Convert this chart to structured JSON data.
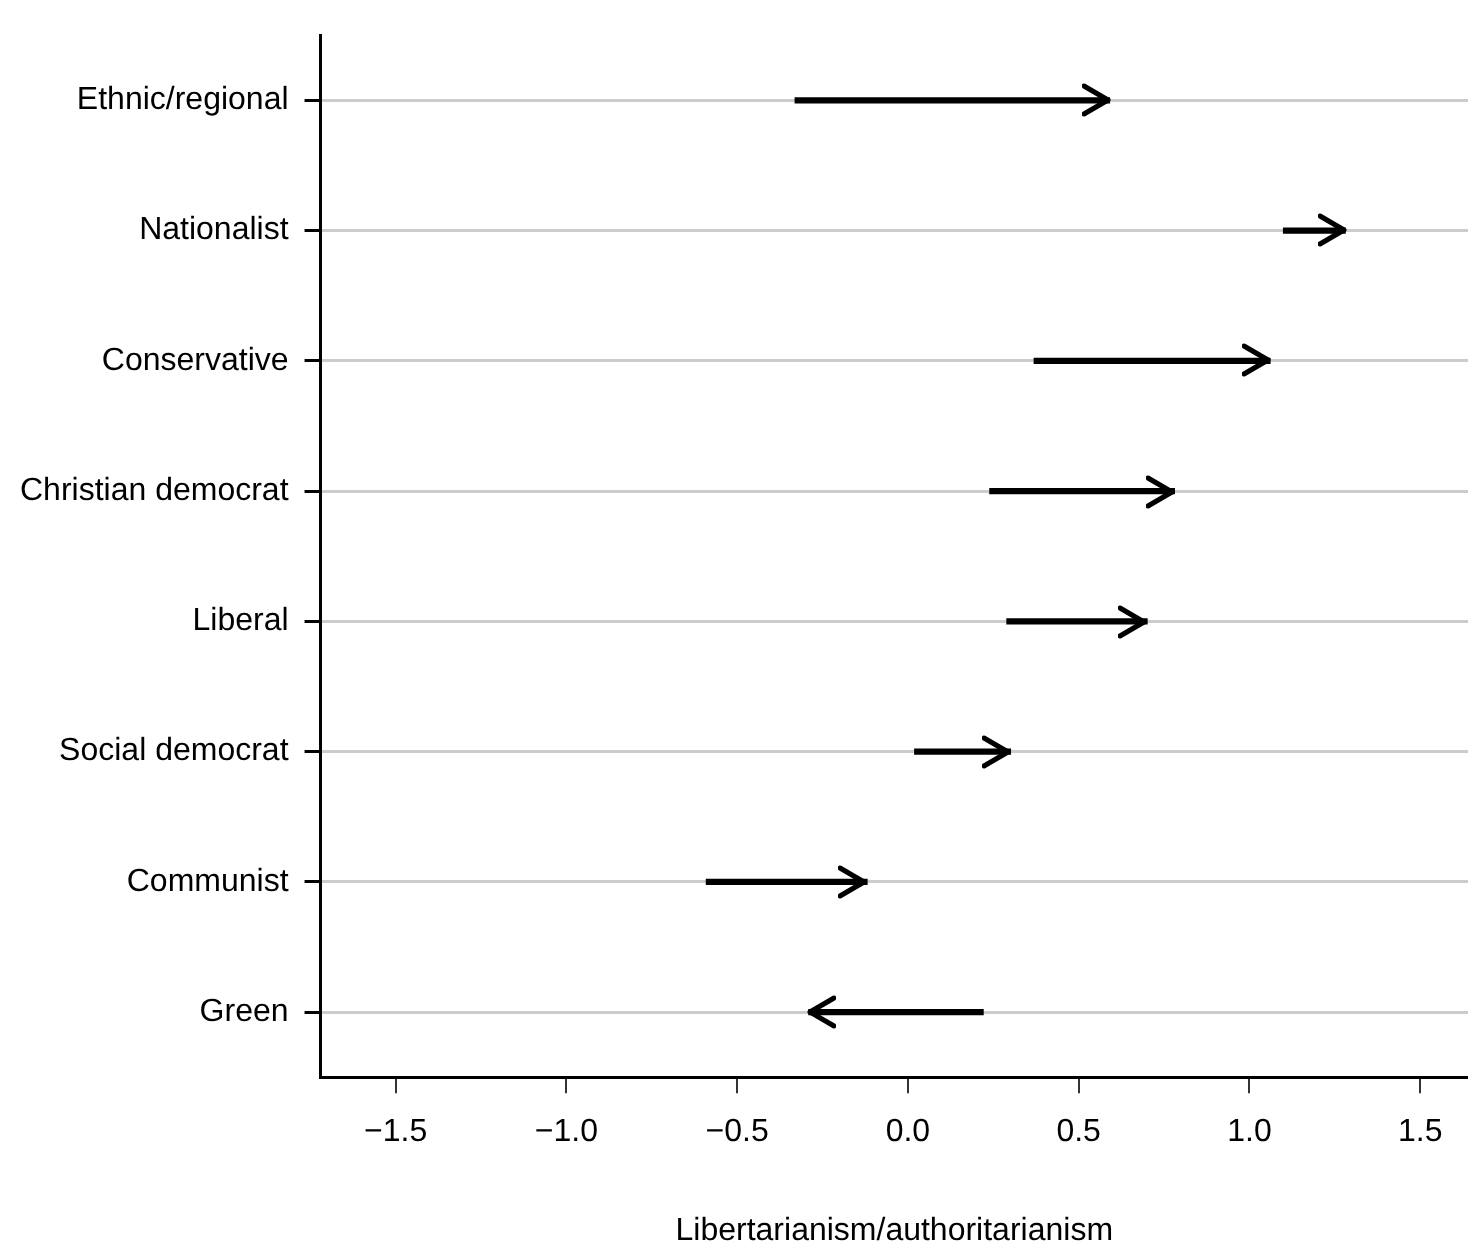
{
  "chart_data": {
    "type": "bar",
    "orientation": "horizontal",
    "xlabel": "Libertarianism/authoritarianism",
    "categories": [
      "Ethnic/regional",
      "Nationalist",
      "Conservative",
      "Christian democrat",
      "Liberal",
      "Social democrat",
      "Communist",
      "Green"
    ],
    "base": [
      -0.33,
      1.1,
      0.37,
      0.24,
      0.29,
      0.02,
      -0.59,
      0.22
    ],
    "values": [
      0.92,
      0.18,
      0.69,
      0.54,
      0.41,
      0.28,
      0.47,
      -0.51
    ],
    "color": "#000000",
    "xlim": [
      -1.72,
      1.64
    ],
    "xticks": [
      {
        "value": -1.5,
        "label": "−1.5"
      },
      {
        "value": -1,
        "label": "−1.0"
      },
      {
        "value": -0.5,
        "label": "−0.5"
      },
      {
        "value": 0,
        "label": "0.0"
      },
      {
        "value": 0.5,
        "label": "0.5"
      },
      {
        "value": 1,
        "label": "1.0"
      },
      {
        "value": 1.5,
        "label": "1.5"
      }
    ],
    "grid": "y",
    "legend": false
  }
}
